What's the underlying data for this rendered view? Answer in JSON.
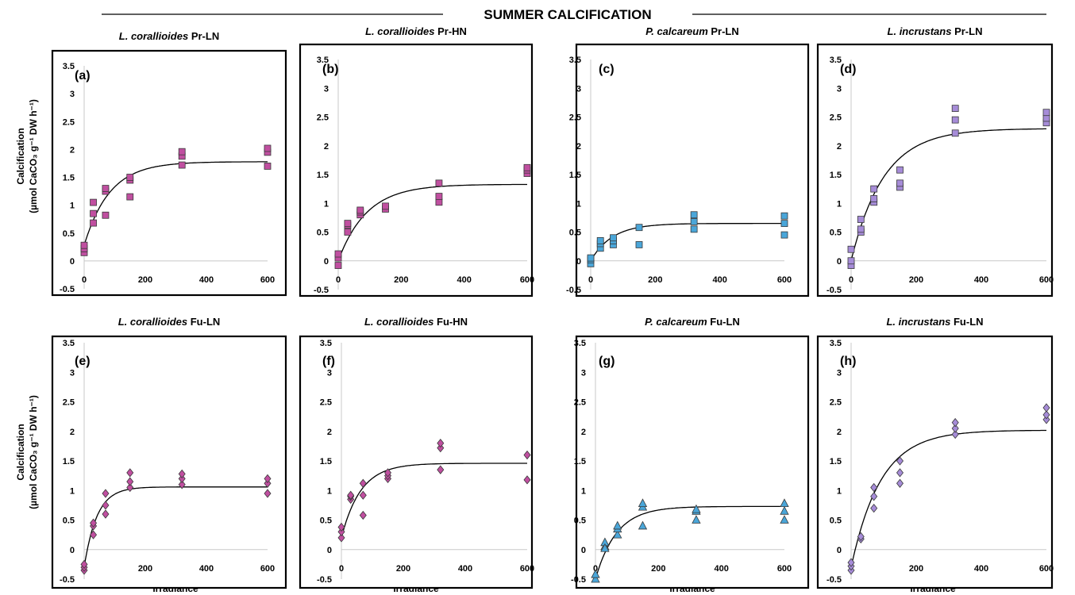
{
  "figure": {
    "title": "SUMMER CALCIFICATION",
    "ylabel_line1": "Calcification",
    "ylabel_line2": "(µmol CaCO₃ g⁻¹ DW h⁻¹)",
    "xlabel": "Irradiance"
  },
  "colors": {
    "pink": "#c04fa0",
    "blue": "#4aa6d9",
    "lavender": "#a68cd8"
  },
  "chart_data": [
    {
      "type": "scatter",
      "panel": "(a)",
      "species": "L. corallioides",
      "suffix": "Pr-LN",
      "marker": "square",
      "color": "pink",
      "xlim": [
        0,
        600
      ],
      "ylim": [
        -0.5,
        3.5
      ],
      "xticks": [
        "0",
        "200",
        "400",
        "600"
      ],
      "yticks": [
        "-0.5",
        "0",
        "0.5",
        "1",
        "1.5",
        "2",
        "2.5",
        "3",
        "3.5"
      ],
      "points": [
        [
          0,
          0.15
        ],
        [
          0,
          0.22
        ],
        [
          0,
          0.28
        ],
        [
          30,
          0.68
        ],
        [
          30,
          0.85
        ],
        [
          30,
          1.05
        ],
        [
          70,
          0.82
        ],
        [
          70,
          1.25
        ],
        [
          70,
          1.3
        ],
        [
          150,
          1.15
        ],
        [
          150,
          1.45
        ],
        [
          150,
          1.5
        ],
        [
          320,
          1.72
        ],
        [
          320,
          1.88
        ],
        [
          320,
          1.96
        ],
        [
          600,
          1.7
        ],
        [
          600,
          1.95
        ],
        [
          600,
          2.02
        ]
      ],
      "fit": {
        "pmax": 1.78,
        "k": 0.012,
        "y0": 0.28
      }
    },
    {
      "type": "scatter",
      "panel": "(b)",
      "species": "L. corallioides",
      "suffix": "Pr-HN",
      "marker": "square",
      "color": "pink",
      "xlim": [
        0,
        600
      ],
      "ylim": [
        -0.5,
        3.5
      ],
      "xticks": [
        "0",
        "200",
        "400",
        "600"
      ],
      "yticks": [
        "-0.5",
        "0",
        "0.5",
        "1",
        "1.5",
        "2",
        "2.5",
        "3",
        "3.5"
      ],
      "points": [
        [
          0,
          -0.08
        ],
        [
          0,
          0.05
        ],
        [
          0,
          0.12
        ],
        [
          30,
          0.5
        ],
        [
          30,
          0.62
        ],
        [
          30,
          0.65
        ],
        [
          70,
          0.8
        ],
        [
          70,
          0.85
        ],
        [
          70,
          0.88
        ],
        [
          150,
          0.9
        ],
        [
          150,
          0.95
        ],
        [
          320,
          1.02
        ],
        [
          320,
          1.12
        ],
        [
          320,
          1.35
        ],
        [
          600,
          1.52
        ],
        [
          600,
          1.58
        ],
        [
          600,
          1.62
        ]
      ],
      "fit": {
        "pmax": 1.33,
        "k": 0.011,
        "y0": 0.0
      }
    },
    {
      "type": "scatter",
      "panel": "(c)",
      "species": "P. calcareum",
      "suffix": "Pr-LN",
      "marker": "square",
      "color": "blue",
      "xlim": [
        0,
        600
      ],
      "ylim": [
        -0.5,
        3.5
      ],
      "xticks": [
        "0",
        "200",
        "400",
        "600"
      ],
      "yticks": [
        "-0.5",
        "0",
        "0.5",
        "1",
        "1.5",
        "2",
        "2.5",
        "3",
        "3.5"
      ],
      "points": [
        [
          0,
          -0.05
        ],
        [
          0,
          0.02
        ],
        [
          0,
          0.05
        ],
        [
          30,
          0.22
        ],
        [
          30,
          0.3
        ],
        [
          30,
          0.35
        ],
        [
          70,
          0.28
        ],
        [
          70,
          0.35
        ],
        [
          70,
          0.4
        ],
        [
          150,
          0.28
        ],
        [
          150,
          0.58
        ],
        [
          320,
          0.55
        ],
        [
          320,
          0.68
        ],
        [
          320,
          0.8
        ],
        [
          600,
          0.45
        ],
        [
          600,
          0.65
        ],
        [
          600,
          0.78
        ]
      ],
      "fit": {
        "pmax": 0.65,
        "k": 0.015,
        "y0": 0.0
      }
    },
    {
      "type": "scatter",
      "panel": "(d)",
      "species": "L. incrustans",
      "suffix": "Pr-LN",
      "marker": "square",
      "color": "lavender",
      "xlim": [
        0,
        600
      ],
      "ylim": [
        -0.5,
        3.5
      ],
      "xticks": [
        "0",
        "200",
        "400",
        "600"
      ],
      "yticks": [
        "-0.5",
        "0",
        "0.5",
        "1",
        "1.5",
        "2",
        "2.5",
        "3",
        "3.5"
      ],
      "points": [
        [
          0,
          -0.08
        ],
        [
          0,
          0.0
        ],
        [
          0,
          0.2
        ],
        [
          30,
          0.5
        ],
        [
          30,
          0.55
        ],
        [
          30,
          0.72
        ],
        [
          70,
          1.02
        ],
        [
          70,
          1.08
        ],
        [
          70,
          1.25
        ],
        [
          150,
          1.28
        ],
        [
          150,
          1.35
        ],
        [
          150,
          1.58
        ],
        [
          320,
          2.22
        ],
        [
          320,
          2.45
        ],
        [
          320,
          2.65
        ],
        [
          600,
          2.4
        ],
        [
          600,
          2.48
        ],
        [
          600,
          2.58
        ]
      ],
      "fit": {
        "pmax": 2.3,
        "k": 0.01,
        "y0": 0.0
      }
    },
    {
      "type": "scatter",
      "panel": "(e)",
      "species": "L. corallioides",
      "suffix": "Fu-LN",
      "marker": "diamond",
      "color": "pink",
      "xlim": [
        0,
        600
      ],
      "ylim": [
        -0.5,
        3.5
      ],
      "xticks": [
        "200",
        "400",
        "600"
      ],
      "yticks": [
        "-0.5",
        "0",
        "0.5",
        "1",
        "1.5",
        "2",
        "2.5",
        "3",
        "3.5"
      ],
      "points": [
        [
          0,
          -0.35
        ],
        [
          0,
          -0.3
        ],
        [
          0,
          -0.25
        ],
        [
          30,
          0.25
        ],
        [
          30,
          0.4
        ],
        [
          30,
          0.45
        ],
        [
          70,
          0.6
        ],
        [
          70,
          0.75
        ],
        [
          70,
          0.95
        ],
        [
          150,
          1.05
        ],
        [
          150,
          1.15
        ],
        [
          150,
          1.3
        ],
        [
          320,
          1.1
        ],
        [
          320,
          1.2
        ],
        [
          320,
          1.28
        ],
        [
          600,
          0.95
        ],
        [
          600,
          1.12
        ],
        [
          600,
          1.2
        ]
      ],
      "fit": {
        "pmax": 1.06,
        "k": 0.024,
        "y0": -0.3
      }
    },
    {
      "type": "scatter",
      "panel": "(f)",
      "species": "L. corallioides",
      "suffix": "Fu-HN",
      "marker": "diamond",
      "color": "pink",
      "xlim": [
        0,
        600
      ],
      "ylim": [
        -0.5,
        3.5
      ],
      "xticks": [
        "0",
        "200",
        "400",
        "600"
      ],
      "yticks": [
        "-0.5",
        "0",
        "0.5",
        "1",
        "1.5",
        "2",
        "2.5",
        "3",
        "3.5"
      ],
      "points": [
        [
          0,
          0.2
        ],
        [
          0,
          0.3
        ],
        [
          0,
          0.38
        ],
        [
          30,
          0.85
        ],
        [
          30,
          0.9
        ],
        [
          30,
          0.92
        ],
        [
          70,
          0.58
        ],
        [
          70,
          0.92
        ],
        [
          70,
          1.12
        ],
        [
          150,
          1.2
        ],
        [
          150,
          1.25
        ],
        [
          150,
          1.3
        ],
        [
          320,
          1.35
        ],
        [
          320,
          1.72
        ],
        [
          320,
          1.8
        ],
        [
          600,
          1.18
        ],
        [
          600,
          1.6
        ]
      ],
      "fit": {
        "pmax": 1.46,
        "k": 0.016,
        "y0": 0.2
      }
    },
    {
      "type": "scatter",
      "panel": "(g)",
      "species": "P. calcareum",
      "suffix": "Fu-LN",
      "marker": "triangle",
      "color": "blue",
      "xlim": [
        0,
        600
      ],
      "ylim": [
        -0.5,
        3.5
      ],
      "xticks": [
        "0",
        "200",
        "400",
        "600"
      ],
      "yticks": [
        "-0.5",
        "0",
        "0.5",
        "1",
        "1.5",
        "2",
        "2.5",
        "3",
        "3.5"
      ],
      "points": [
        [
          0,
          -0.5
        ],
        [
          0,
          -0.42
        ],
        [
          30,
          0.05
        ],
        [
          30,
          0.12
        ],
        [
          30,
          0.02
        ],
        [
          70,
          0.25
        ],
        [
          70,
          0.35
        ],
        [
          70,
          0.4
        ],
        [
          150,
          0.4
        ],
        [
          150,
          0.72
        ],
        [
          150,
          0.78
        ],
        [
          320,
          0.5
        ],
        [
          320,
          0.65
        ],
        [
          320,
          0.68
        ],
        [
          600,
          0.5
        ],
        [
          600,
          0.65
        ],
        [
          600,
          0.78
        ]
      ],
      "fit": {
        "pmax": 0.73,
        "k": 0.015,
        "y0": -0.5
      }
    },
    {
      "type": "scatter",
      "panel": "(h)",
      "species": "L. incrustans",
      "suffix": "Fu-LN",
      "marker": "diamond",
      "color": "lavender",
      "xlim": [
        0,
        600
      ],
      "ylim": [
        -0.5,
        3.5
      ],
      "xticks": [
        "200",
        "400",
        "600"
      ],
      "yticks": [
        "-0.5",
        "0",
        "0.5",
        "1",
        "1.5",
        "2",
        "2.5",
        "3",
        "3.5"
      ],
      "points": [
        [
          0,
          -0.35
        ],
        [
          0,
          -0.28
        ],
        [
          0,
          -0.22
        ],
        [
          30,
          0.18
        ],
        [
          30,
          0.22
        ],
        [
          70,
          0.7
        ],
        [
          70,
          0.9
        ],
        [
          70,
          1.05
        ],
        [
          150,
          1.12
        ],
        [
          150,
          1.3
        ],
        [
          150,
          1.5
        ],
        [
          320,
          1.95
        ],
        [
          320,
          2.05
        ],
        [
          320,
          2.15
        ],
        [
          600,
          2.2
        ],
        [
          600,
          2.28
        ],
        [
          600,
          2.4
        ]
      ],
      "fit": {
        "pmax": 2.02,
        "k": 0.011,
        "y0": -0.3
      }
    }
  ]
}
